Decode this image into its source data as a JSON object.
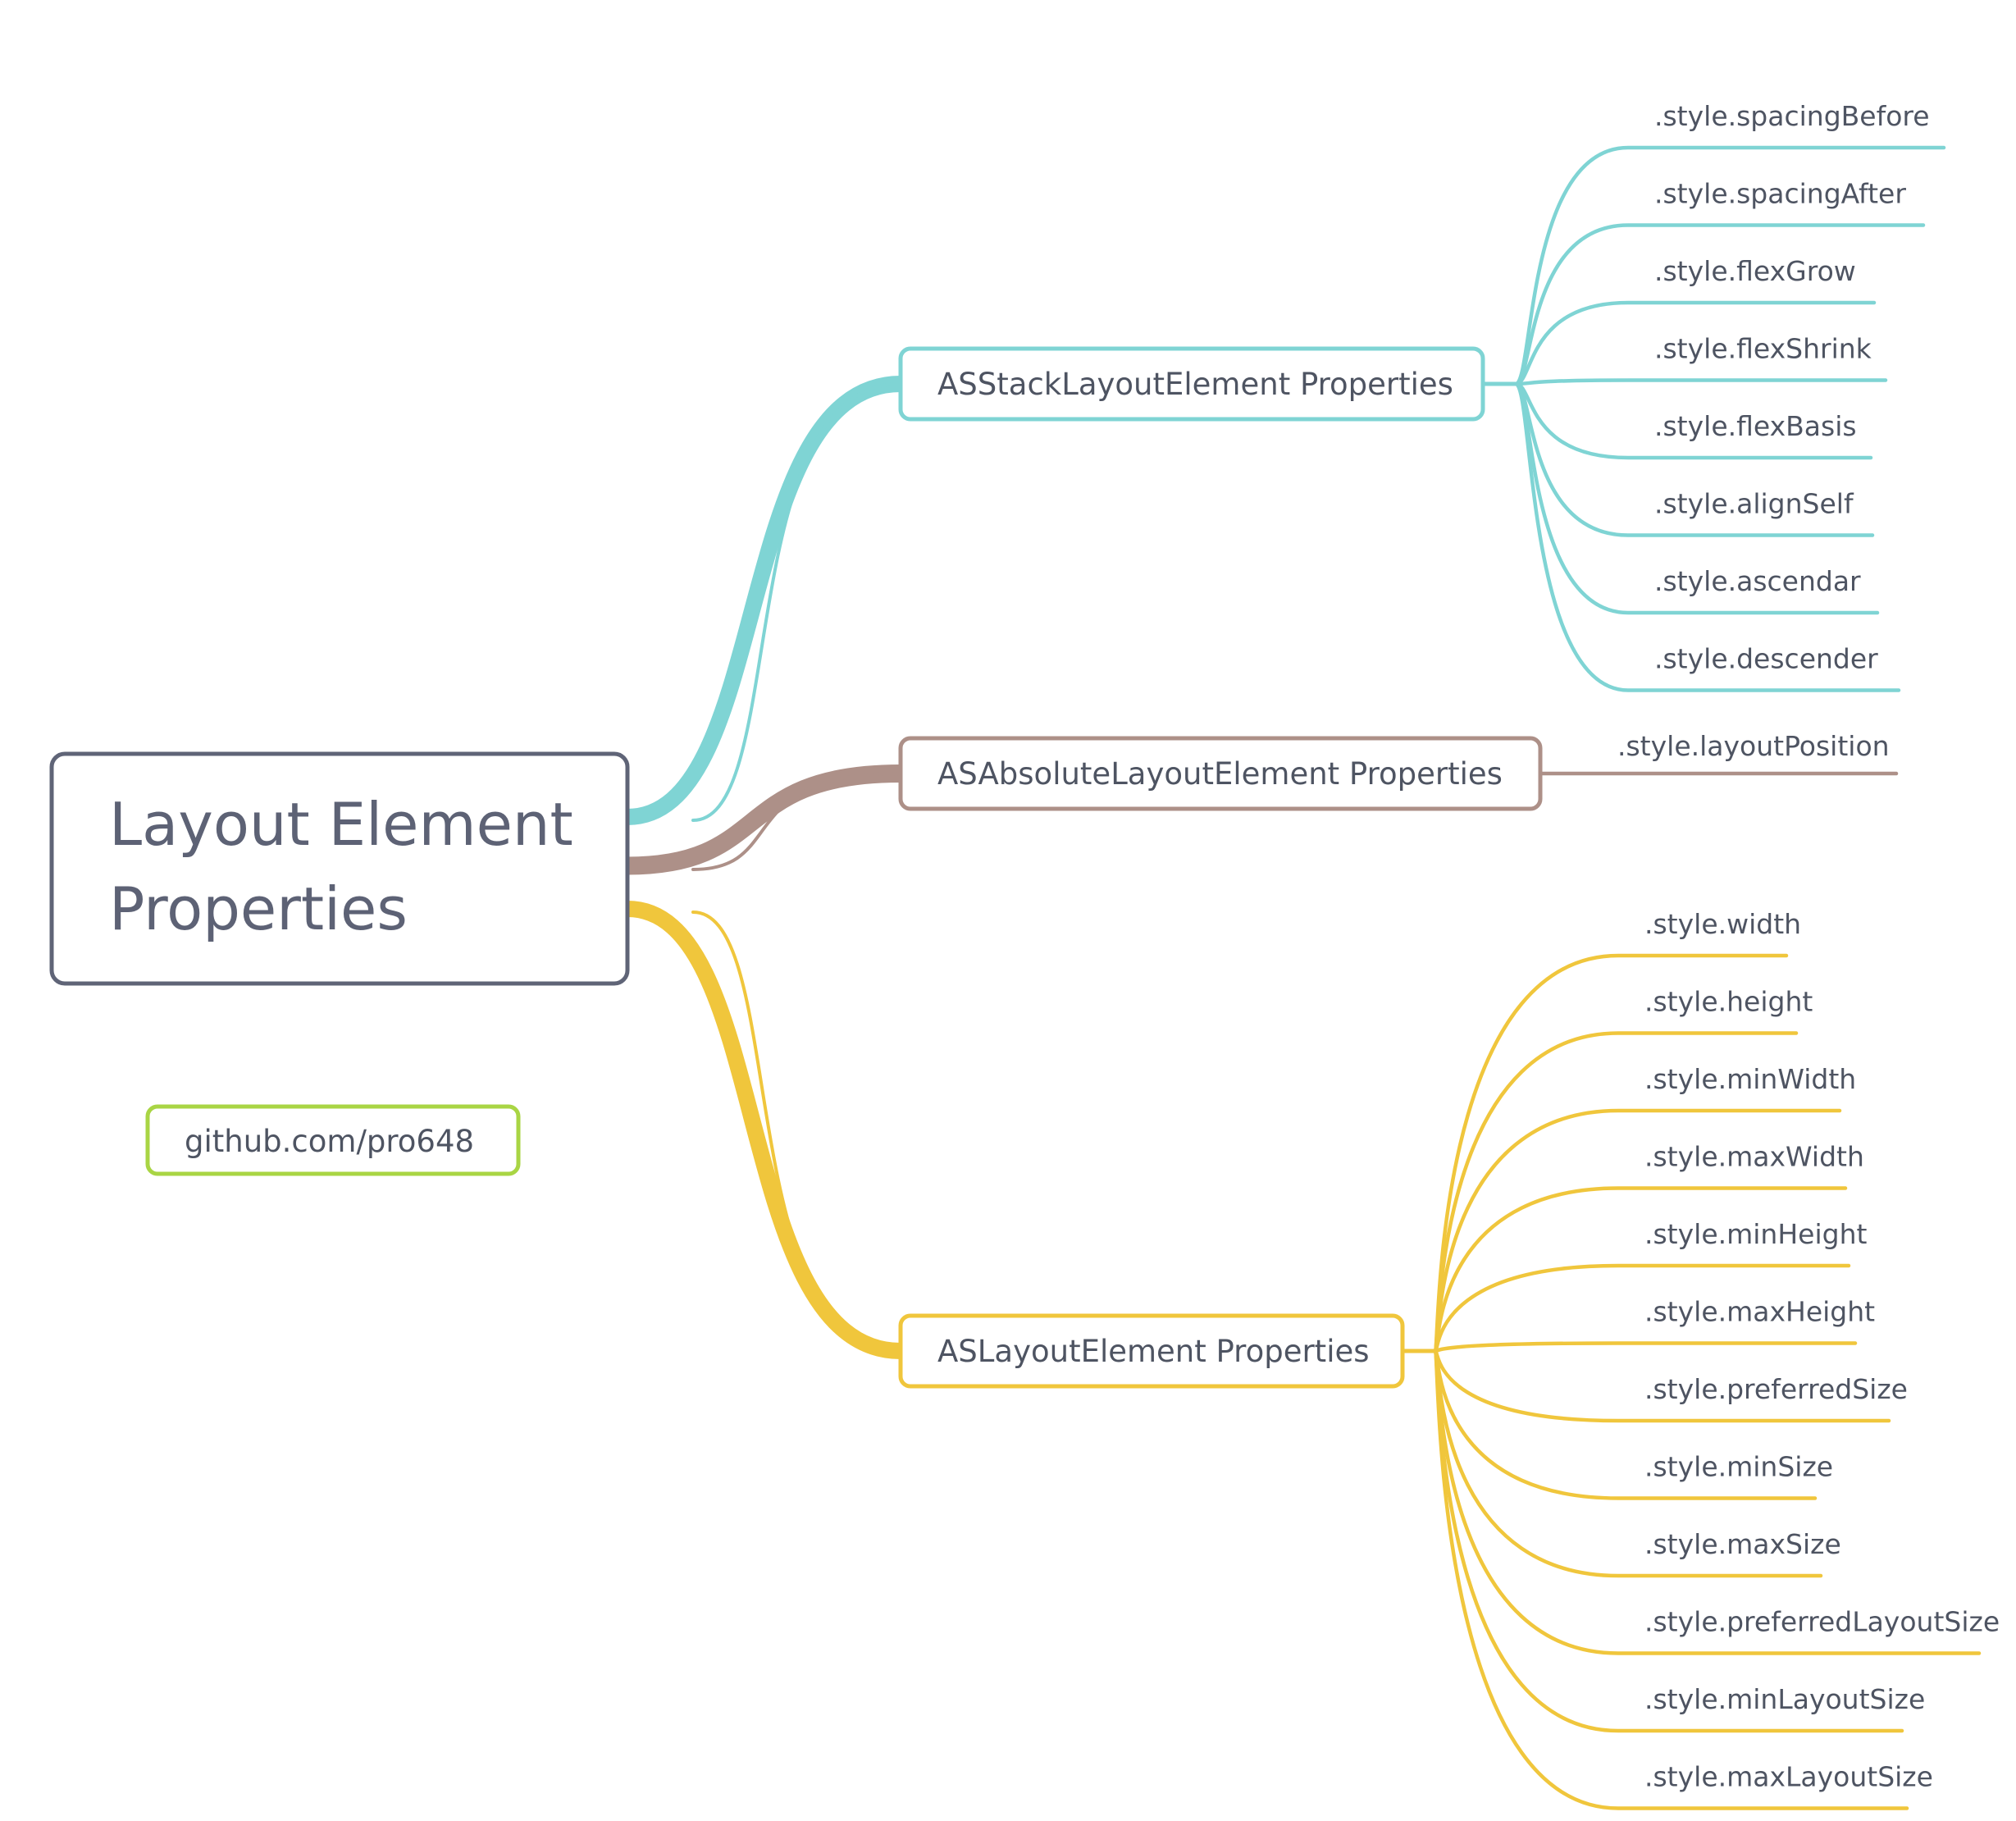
{
  "root": {
    "title_line1": "Layout Element",
    "title_line2": "Properties",
    "color": "#5f6477"
  },
  "note": {
    "label": "github.com/pro648",
    "color": "#a9d544"
  },
  "branches": [
    {
      "key": "stack",
      "label": "ASStackLayoutElement Properties",
      "color": "#7fd4d4",
      "leaves": [
        ".style.spacingBefore",
        ".style.spacingAfter",
        ".style.flexGrow",
        ".style.flexShrink",
        ".style.flexBasis",
        ".style.alignSelf",
        ".style.ascendar",
        ".style.descender"
      ]
    },
    {
      "key": "absolute",
      "label": "ASAbsoluteLayoutElement Properties",
      "color": "#ad9088",
      "leaves": [
        ".style.layoutPosition"
      ]
    },
    {
      "key": "layout",
      "label": "ASLayoutElement Properties",
      "color": "#f0c63c",
      "leaves": [
        ".style.width",
        ".style.height",
        ".style.minWidth",
        ".style.maxWidth",
        ".style.minHeight",
        ".style.maxHeight",
        ".style.preferredSize",
        ".style.minSize",
        ".style.maxSize",
        ".style.preferredLayoutSize",
        ".style.minLayoutSize",
        ".style.maxLayoutSize"
      ]
    }
  ]
}
